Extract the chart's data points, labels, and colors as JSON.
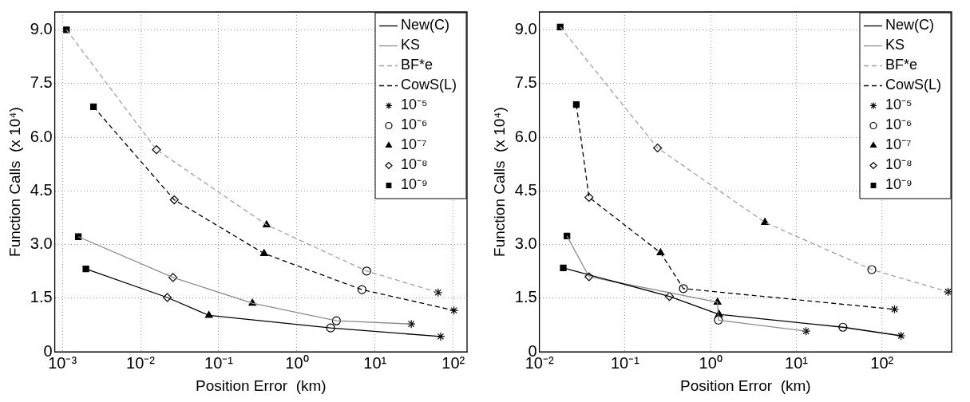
{
  "chart_data": [
    {
      "type": "line",
      "xlabel": "Position Error  (km)",
      "ylabel": "Function Calls  (x 10⁴)",
      "log": "x",
      "grid": true,
      "legend": "top right",
      "xlim": [
        0.0008,
        150
      ],
      "xticks": [
        {
          "value": 0.001,
          "label": "10⁻³"
        },
        {
          "value": 0.01,
          "label": "10⁻²"
        },
        {
          "value": 0.1,
          "label": "10⁻¹"
        },
        {
          "value": 1,
          "label": "10⁰"
        },
        {
          "value": 10,
          "label": "10¹"
        },
        {
          "value": 100,
          "label": "10²"
        }
      ],
      "ylim": [
        0,
        9.5
      ],
      "yticks": [
        0,
        1.5,
        {
          "value": 3,
          "label": "3.0"
        },
        4.5,
        {
          "value": 6,
          "label": "6.0"
        },
        7.5,
        {
          "value": 9,
          "label": "9.0"
        }
      ],
      "series": [
        {
          "name": "New(C)",
          "type": "line",
          "color": "#000000",
          "line_style": "solid",
          "x": [
            0.002,
            0.022,
            0.075,
            2.7,
            69
          ],
          "values": [
            2.32,
            1.52,
            1.02,
            0.67,
            0.43
          ]
        },
        {
          "name": "KS",
          "type": "line",
          "color": "#8c8c8c",
          "line_style": "solid",
          "x": [
            0.0016,
            0.026,
            0.27,
            3.2,
            29
          ],
          "values": [
            3.22,
            2.08,
            1.36,
            0.87,
            0.78
          ]
        },
        {
          "name": "BF*e",
          "type": "line",
          "color": "#a0a0a0",
          "line_style": "dashed",
          "x": [
            0.00113,
            0.016,
            0.41,
            7.8,
            64
          ],
          "values": [
            9.0,
            5.65,
            3.55,
            2.26,
            1.66
          ]
        },
        {
          "name": "CowS(L)",
          "type": "line",
          "color": "#000000",
          "line_style": "dashed",
          "x": [
            0.0025,
            0.027,
            0.38,
            6.8,
            102
          ],
          "values": [
            6.85,
            4.25,
            2.75,
            1.74,
            1.16
          ]
        },
        {
          "name": "10⁻⁵",
          "type": "scatter",
          "marker": "cross",
          "color": "#000000",
          "x": [
            69,
            29,
            64,
            102
          ],
          "values": [
            0.43,
            0.78,
            1.66,
            1.16
          ]
        },
        {
          "name": "10⁻⁶",
          "type": "scatter",
          "marker": "circle",
          "color": "#000000",
          "x": [
            2.7,
            3.2,
            7.8,
            6.8
          ],
          "values": [
            0.67,
            0.87,
            2.26,
            1.74
          ]
        },
        {
          "name": "10⁻⁷",
          "type": "scatter",
          "marker": "triangle",
          "color": "#000000",
          "x": [
            0.075,
            0.27,
            0.41,
            0.38
          ],
          "values": [
            1.02,
            1.36,
            3.55,
            2.75
          ]
        },
        {
          "name": "10⁻⁸",
          "type": "scatter",
          "marker": "diamond",
          "color": "#000000",
          "x": [
            0.022,
            0.026,
            0.016,
            0.027
          ],
          "values": [
            1.52,
            2.08,
            5.65,
            4.25
          ]
        },
        {
          "name": "10⁻⁹",
          "type": "scatter",
          "marker": "square",
          "color": "#000000",
          "x": [
            0.002,
            0.0016,
            0.00113,
            0.0025
          ],
          "values": [
            2.32,
            3.22,
            9.0,
            6.85
          ]
        }
      ]
    },
    {
      "type": "line",
      "xlabel": "Position Error  (km)",
      "ylabel": "Function Calls  (x 10⁴)",
      "log": "x",
      "grid": true,
      "legend": "top right",
      "xlim": [
        0.01,
        650
      ],
      "xticks": [
        {
          "value": 0.01,
          "label": "10⁻²"
        },
        {
          "value": 0.1,
          "label": "10⁻¹"
        },
        {
          "value": 1,
          "label": "10⁰"
        },
        {
          "value": 10,
          "label": "10¹"
        },
        {
          "value": 100,
          "label": "10²"
        }
      ],
      "ylim": [
        0,
        9.5
      ],
      "yticks": [
        0,
        1.5,
        {
          "value": 3,
          "label": "3.0"
        },
        4.5,
        {
          "value": 6,
          "label": "6.0"
        },
        7.5,
        {
          "value": 9,
          "label": "9.0"
        }
      ],
      "series": [
        {
          "name": "New(C)",
          "type": "line",
          "color": "#000000",
          "line_style": "solid",
          "x": [
            0.019,
            0.33,
            1.25,
            35,
            167
          ],
          "values": [
            2.35,
            1.55,
            1.05,
            0.69,
            0.45
          ]
        },
        {
          "name": "KS",
          "type": "line",
          "color": "#8c8c8c",
          "line_style": "solid",
          "x": [
            0.021,
            0.038,
            1.2,
            1.23,
            13
          ],
          "values": [
            3.24,
            2.1,
            1.39,
            0.89,
            0.58
          ]
        },
        {
          "name": "BF*e",
          "type": "line",
          "color": "#a0a0a0",
          "line_style": "dashed",
          "x": [
            0.0175,
            0.24,
            4.3,
            76,
            590
          ],
          "values": [
            9.08,
            5.7,
            3.62,
            2.3,
            1.68
          ]
        },
        {
          "name": "CowS(L)",
          "type": "line",
          "color": "#000000",
          "line_style": "dashed",
          "x": [
            0.027,
            0.038,
            0.26,
            0.48,
            140
          ],
          "values": [
            6.91,
            4.32,
            2.77,
            1.77,
            1.19
          ]
        },
        {
          "name": "10⁻⁵",
          "type": "scatter",
          "marker": "cross",
          "color": "#000000",
          "x": [
            167,
            13,
            590,
            140
          ],
          "values": [
            0.45,
            0.58,
            1.68,
            1.19
          ]
        },
        {
          "name": "10⁻⁶",
          "type": "scatter",
          "marker": "circle",
          "color": "#000000",
          "x": [
            35,
            1.23,
            76,
            0.48
          ],
          "values": [
            0.69,
            0.89,
            2.3,
            1.77
          ]
        },
        {
          "name": "10⁻⁷",
          "type": "scatter",
          "marker": "triangle",
          "color": "#000000",
          "x": [
            1.25,
            1.2,
            4.3,
            0.26
          ],
          "values": [
            1.05,
            1.39,
            3.62,
            2.77
          ]
        },
        {
          "name": "10⁻⁸",
          "type": "scatter",
          "marker": "diamond",
          "color": "#000000",
          "x": [
            0.33,
            0.038,
            0.24,
            0.038
          ],
          "values": [
            1.55,
            2.1,
            5.7,
            4.32
          ]
        },
        {
          "name": "10⁻⁹",
          "type": "scatter",
          "marker": "square",
          "color": "#000000",
          "x": [
            0.019,
            0.021,
            0.0175,
            0.027
          ],
          "values": [
            2.35,
            3.24,
            9.08,
            6.91
          ]
        }
      ]
    }
  ]
}
